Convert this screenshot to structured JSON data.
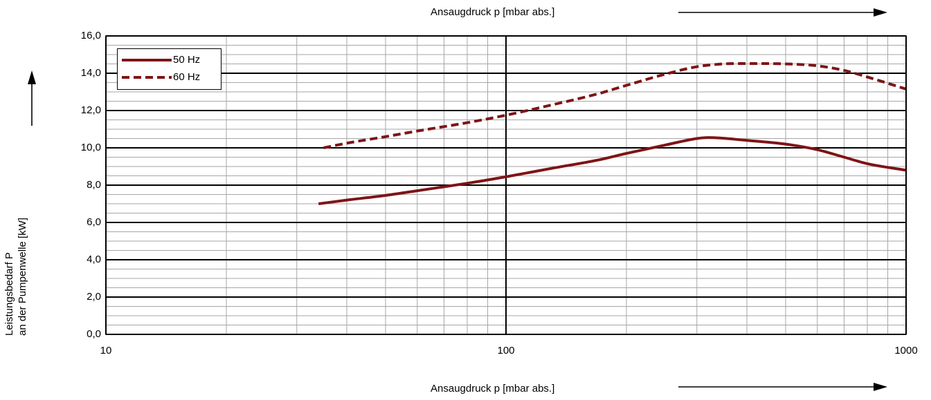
{
  "chart_data": {
    "type": "line",
    "xlabel_top": "Ansaugdruck p [mbar abs.]",
    "xlabel_bottom": "Ansaugdruck p [mbar abs.]",
    "ylabel_line1": "Leistungsbedarf P",
    "ylabel_line2": "an der Pumpenwelle [kW]",
    "x_scale": "log",
    "xlim": [
      10,
      1000
    ],
    "ylim": [
      0,
      16
    ],
    "x_ticks": [
      10,
      100,
      1000
    ],
    "x_tick_labels": [
      "10",
      "100",
      "1000"
    ],
    "y_ticks": [
      0,
      2,
      4,
      6,
      8,
      10,
      12,
      14,
      16
    ],
    "y_tick_labels": [
      "0,0",
      "2,0",
      "4,0",
      "6,0",
      "8,0",
      "10,0",
      "12,0",
      "14,0",
      "16,0"
    ],
    "grid": true,
    "legend_position": "top-left",
    "line_color": "#7f1416",
    "series": [
      {
        "name": "50 Hz",
        "style": "solid",
        "x": [
          34,
          40,
          50,
          60,
          80,
          100,
          130,
          170,
          200,
          250,
          300,
          320,
          400,
          500,
          600,
          700,
          800,
          1000
        ],
        "y": [
          7.0,
          7.2,
          7.45,
          7.7,
          8.1,
          8.45,
          8.9,
          9.35,
          9.7,
          10.15,
          10.5,
          10.55,
          10.4,
          10.2,
          9.9,
          9.5,
          9.15,
          8.8
        ]
      },
      {
        "name": "60 Hz",
        "style": "dashed",
        "x": [
          35,
          40,
          50,
          60,
          80,
          100,
          130,
          170,
          200,
          250,
          300,
          350,
          400,
          500,
          600,
          700,
          800,
          1000
        ],
        "y": [
          10.0,
          10.25,
          10.6,
          10.9,
          11.35,
          11.75,
          12.3,
          12.9,
          13.35,
          13.95,
          14.35,
          14.5,
          14.52,
          14.5,
          14.4,
          14.15,
          13.8,
          13.15
        ]
      }
    ]
  }
}
